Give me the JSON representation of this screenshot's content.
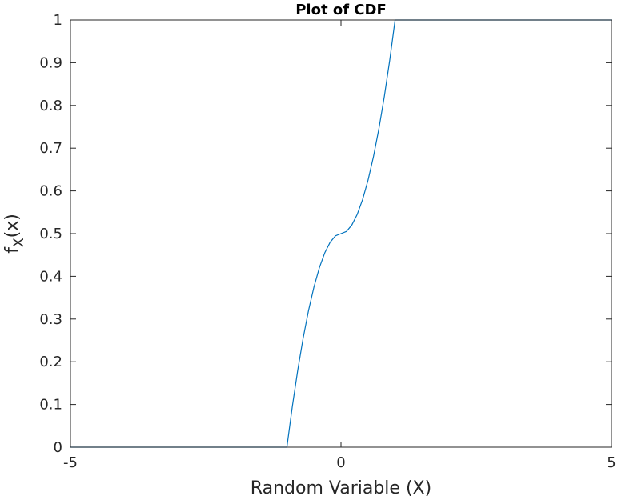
{
  "chart_data": {
    "type": "line",
    "title": "Plot of CDF",
    "xlabel": "Random Variable (X)",
    "ylabel": {
      "main": "f",
      "subscript": "X",
      "suffix": "(x)"
    },
    "xlim": [
      -5,
      5
    ],
    "ylim": [
      0,
      1
    ],
    "x_ticks": [
      -5,
      0,
      5
    ],
    "x_tick_labels": [
      "-5",
      "0",
      "5"
    ],
    "y_ticks": [
      0,
      0.1,
      0.2,
      0.3,
      0.4,
      0.5,
      0.6,
      0.7,
      0.8,
      0.9,
      1
    ],
    "y_tick_labels": [
      "0",
      "0.1",
      "0.2",
      "0.3",
      "0.4",
      "0.5",
      "0.6",
      "0.7",
      "0.8",
      "0.9",
      "1"
    ],
    "grid": false,
    "series": [
      {
        "color": "#0072bd",
        "x": [
          -5,
          -1,
          -0.9,
          -0.8,
          -0.7,
          -0.6,
          -0.5,
          -0.4,
          -0.3,
          -0.2,
          -0.1,
          0,
          0.1,
          0.2,
          0.3,
          0.4,
          0.5,
          0.6,
          0.7,
          0.8,
          0.9,
          1,
          5
        ],
        "y": [
          0,
          0,
          0.095,
          0.18,
          0.255,
          0.32,
          0.375,
          0.42,
          0.455,
          0.48,
          0.495,
          0.5,
          0.505,
          0.52,
          0.545,
          0.58,
          0.625,
          0.68,
          0.745,
          0.82,
          0.905,
          1,
          1
        ]
      }
    ]
  }
}
